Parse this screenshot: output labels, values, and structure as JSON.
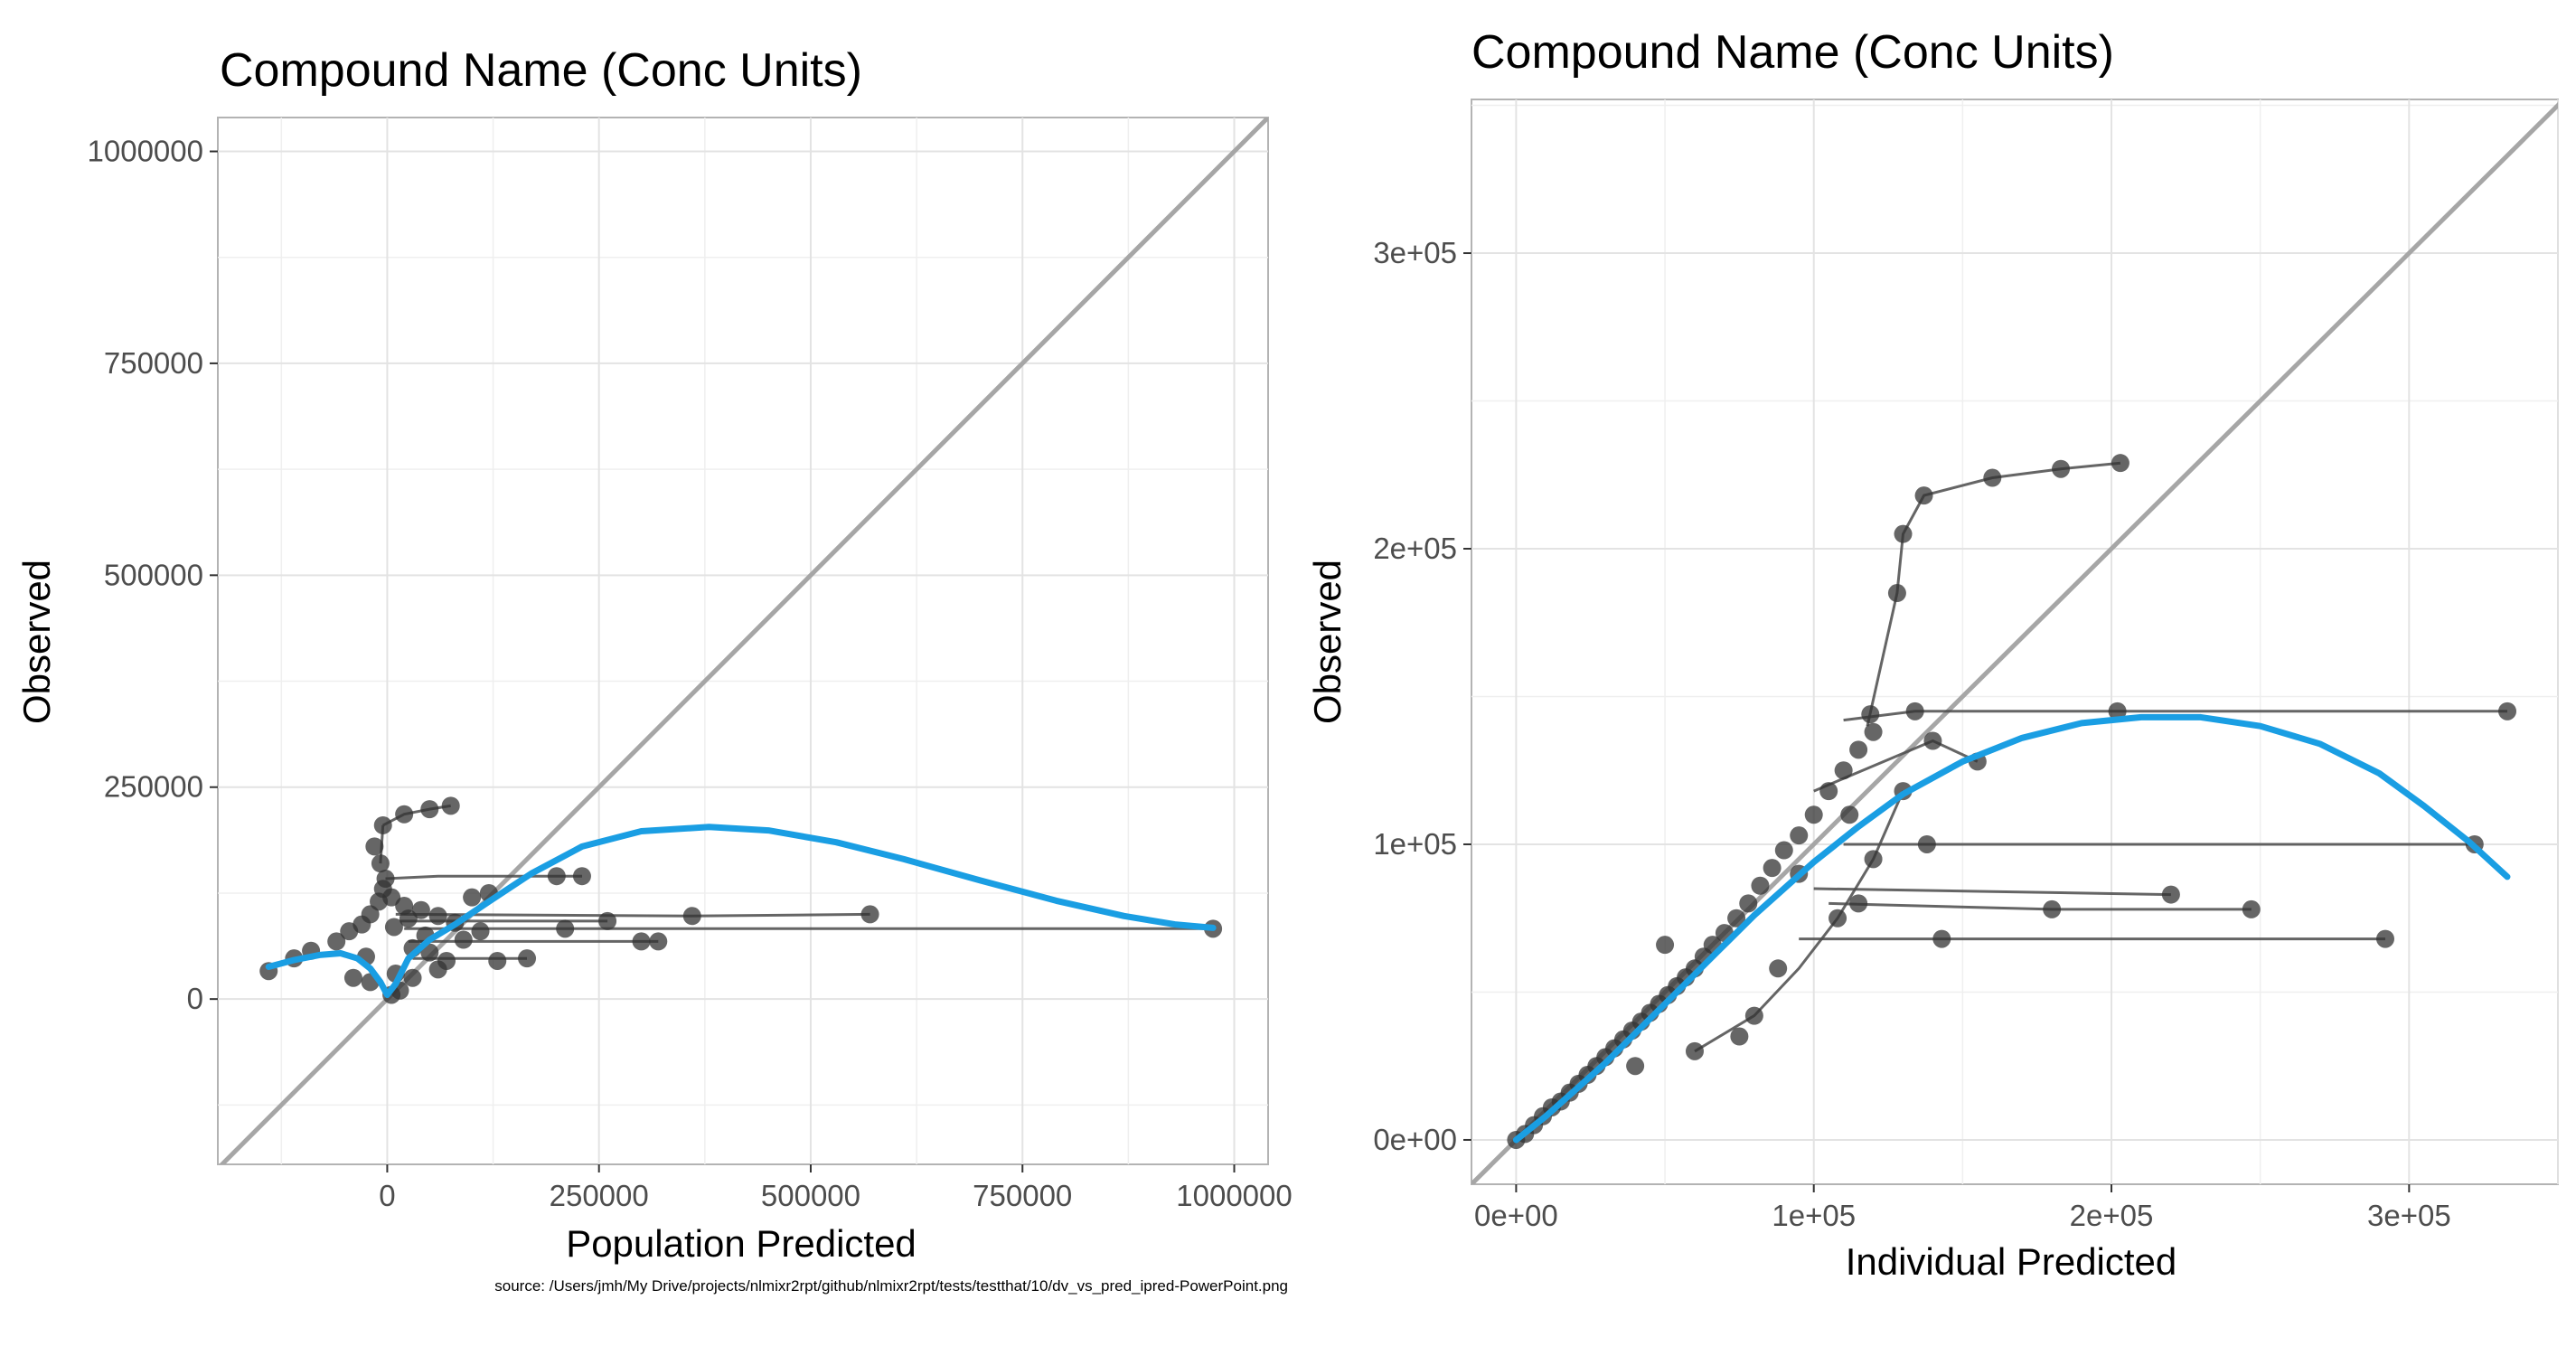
{
  "caption": "source: /Users/jmh/My Drive/projects/nlmixr2rpt/github/nlmixr2rpt/tests/testthat/10/dv_vs_pred_ipred-PowerPoint.png",
  "colors": {
    "identity_line": "#a6a6a6",
    "smooth_line": "#1a9ee3",
    "points": "#333333",
    "grid": "#e3e3e3",
    "panel_border": "#b3b3b3"
  },
  "chart_data": [
    {
      "type": "scatter",
      "title": "Compound Name (Conc Units)",
      "xlabel": "Population Predicted",
      "ylabel": "Observed",
      "xlim": [
        -200000,
        1040000
      ],
      "ylim": [
        -195000,
        1040000
      ],
      "x_ticks": [
        0,
        250000,
        500000,
        750000,
        1000000
      ],
      "x_tick_labels": [
        "0",
        "250000",
        "500000",
        "750000",
        "1000000"
      ],
      "y_ticks": [
        0,
        250000,
        500000,
        750000,
        1000000
      ],
      "y_tick_labels": [
        "0",
        "250000",
        "500000",
        "750000",
        "1000000"
      ],
      "grid": true,
      "identity_line": true,
      "points": [
        [
          -140000,
          33000
        ],
        [
          -110000,
          48000
        ],
        [
          -90000,
          57000
        ],
        [
          -60000,
          68000
        ],
        [
          -45000,
          80000
        ],
        [
          -30000,
          88000
        ],
        [
          -20000,
          100000
        ],
        [
          -10000,
          115000
        ],
        [
          -5000,
          130000
        ],
        [
          -2000,
          142000
        ],
        [
          -8000,
          160000
        ],
        [
          -15000,
          180000
        ],
        [
          -5000,
          205000
        ],
        [
          20000,
          218000
        ],
        [
          50000,
          224000
        ],
        [
          75000,
          228000
        ],
        [
          5000,
          120000
        ],
        [
          20000,
          110000
        ],
        [
          40000,
          105000
        ],
        [
          60000,
          98000
        ],
        [
          80000,
          90000
        ],
        [
          100000,
          120000
        ],
        [
          120000,
          125000
        ],
        [
          30000,
          60000
        ],
        [
          50000,
          55000
        ],
        [
          70000,
          45000
        ],
        [
          90000,
          70000
        ],
        [
          110000,
          80000
        ],
        [
          10000,
          30000
        ],
        [
          30000,
          25000
        ],
        [
          60000,
          35000
        ],
        [
          15000,
          10000
        ],
        [
          5000,
          5000
        ],
        [
          -20000,
          20000
        ],
        [
          -40000,
          25000
        ],
        [
          200000,
          145000
        ],
        [
          230000,
          145000
        ],
        [
          260000,
          92000
        ],
        [
          360000,
          98000
        ],
        [
          570000,
          100000
        ],
        [
          300000,
          68000
        ],
        [
          320000,
          68000
        ],
        [
          130000,
          45000
        ],
        [
          165000,
          48000
        ],
        [
          210000,
          83000
        ],
        [
          975000,
          83000
        ],
        [
          8000,
          85000
        ],
        [
          25000,
          95000
        ],
        [
          45000,
          75000
        ],
        [
          -25000,
          50000
        ]
      ],
      "segments": [
        [
          [
            -5000,
            205000
          ],
          [
            20000,
            218000
          ],
          [
            50000,
            224000
          ],
          [
            75000,
            228000
          ]
        ],
        [
          [
            -2000,
            142000
          ],
          [
            60000,
            145000
          ],
          [
            200000,
            145000
          ],
          [
            230000,
            145000
          ]
        ],
        [
          [
            10000,
            100000
          ],
          [
            360000,
            98000
          ],
          [
            570000,
            100000
          ]
        ],
        [
          [
            15000,
            92000
          ],
          [
            260000,
            92000
          ]
        ],
        [
          [
            20000,
            83000
          ],
          [
            975000,
            83000
          ]
        ],
        [
          [
            25000,
            68000
          ],
          [
            300000,
            68000
          ],
          [
            320000,
            68000
          ]
        ],
        [
          [
            30000,
            48000
          ],
          [
            165000,
            48000
          ]
        ],
        [
          [
            -8000,
            160000
          ],
          [
            -5000,
            205000
          ]
        ]
      ],
      "smooth": [
        [
          -140000,
          38000
        ],
        [
          -110000,
          46000
        ],
        [
          -80000,
          52000
        ],
        [
          -55000,
          54000
        ],
        [
          -35000,
          48000
        ],
        [
          -20000,
          36000
        ],
        [
          -8000,
          20000
        ],
        [
          0,
          5000
        ],
        [
          10000,
          18000
        ],
        [
          25000,
          48000
        ],
        [
          50000,
          70000
        ],
        [
          80000,
          88000
        ],
        [
          120000,
          115000
        ],
        [
          170000,
          148000
        ],
        [
          230000,
          180000
        ],
        [
          300000,
          198000
        ],
        [
          380000,
          203000
        ],
        [
          450000,
          199000
        ],
        [
          530000,
          185000
        ],
        [
          610000,
          165000
        ],
        [
          700000,
          140000
        ],
        [
          790000,
          116000
        ],
        [
          870000,
          98000
        ],
        [
          930000,
          88000
        ],
        [
          975000,
          84000
        ]
      ]
    },
    {
      "type": "scatter",
      "title": "Compound Name (Conc Units)",
      "xlabel": "Individual Predicted",
      "ylabel": "Observed",
      "xlim": [
        -15000,
        350000
      ],
      "ylim": [
        -15000,
        352000
      ],
      "x_ticks": [
        0,
        100000,
        200000,
        300000
      ],
      "x_tick_labels": [
        "0e+00",
        "1e+05",
        "2e+05",
        "3e+05"
      ],
      "y_ticks": [
        0,
        100000,
        200000,
        300000
      ],
      "y_tick_labels": [
        "0e+00",
        "1e+05",
        "2e+05",
        "3e+05"
      ],
      "grid": true,
      "identity_line": true,
      "points": [
        [
          0,
          0
        ],
        [
          3000,
          2000
        ],
        [
          6000,
          5000
        ],
        [
          9000,
          8000
        ],
        [
          12000,
          11000
        ],
        [
          15000,
          13000
        ],
        [
          18000,
          16000
        ],
        [
          21000,
          19000
        ],
        [
          24000,
          22000
        ],
        [
          27000,
          25000
        ],
        [
          30000,
          28000
        ],
        [
          33000,
          31000
        ],
        [
          36000,
          34000
        ],
        [
          39000,
          37000
        ],
        [
          42000,
          40000
        ],
        [
          45000,
          43000
        ],
        [
          48000,
          46000
        ],
        [
          51000,
          49000
        ],
        [
          54000,
          52000
        ],
        [
          57000,
          55000
        ],
        [
          60000,
          58000
        ],
        [
          63000,
          62000
        ],
        [
          66000,
          66000
        ],
        [
          70000,
          70000
        ],
        [
          74000,
          75000
        ],
        [
          78000,
          80000
        ],
        [
          82000,
          86000
        ],
        [
          86000,
          92000
        ],
        [
          90000,
          98000
        ],
        [
          95000,
          103000
        ],
        [
          100000,
          110000
        ],
        [
          105000,
          118000
        ],
        [
          110000,
          125000
        ],
        [
          115000,
          132000
        ],
        [
          120000,
          138000
        ],
        [
          128000,
          185000
        ],
        [
          130000,
          205000
        ],
        [
          137000,
          218000
        ],
        [
          160000,
          224000
        ],
        [
          183000,
          227000
        ],
        [
          203000,
          229000
        ],
        [
          119000,
          144000
        ],
        [
          134000,
          145000
        ],
        [
          202000,
          145000
        ],
        [
          333000,
          145000
        ],
        [
          322000,
          100000
        ],
        [
          138000,
          100000
        ],
        [
          220000,
          83000
        ],
        [
          247000,
          78000
        ],
        [
          180000,
          78000
        ],
        [
          292000,
          68000
        ],
        [
          143000,
          68000
        ],
        [
          155000,
          128000
        ],
        [
          140000,
          135000
        ],
        [
          130000,
          118000
        ],
        [
          108000,
          75000
        ],
        [
          88000,
          58000
        ],
        [
          80000,
          42000
        ],
        [
          75000,
          35000
        ],
        [
          60000,
          30000
        ],
        [
          40000,
          25000
        ],
        [
          50000,
          66000
        ],
        [
          95000,
          90000
        ],
        [
          112000,
          110000
        ],
        [
          115000,
          80000
        ],
        [
          120000,
          95000
        ]
      ],
      "segments": [
        [
          [
            118000,
            140000
          ],
          [
            128000,
            185000
          ],
          [
            130000,
            205000
          ],
          [
            137000,
            218000
          ],
          [
            160000,
            224000
          ],
          [
            183000,
            227000
          ],
          [
            203000,
            229000
          ]
        ],
        [
          [
            110000,
            142000
          ],
          [
            134000,
            145000
          ],
          [
            202000,
            145000
          ],
          [
            333000,
            145000
          ]
        ],
        [
          [
            110000,
            100000
          ],
          [
            138000,
            100000
          ],
          [
            322000,
            100000
          ]
        ],
        [
          [
            100000,
            85000
          ],
          [
            220000,
            83000
          ]
        ],
        [
          [
            105000,
            80000
          ],
          [
            180000,
            78000
          ],
          [
            247000,
            78000
          ]
        ],
        [
          [
            95000,
            68000
          ],
          [
            143000,
            68000
          ],
          [
            292000,
            68000
          ]
        ],
        [
          [
            100000,
            118000
          ],
          [
            140000,
            135000
          ],
          [
            155000,
            128000
          ]
        ],
        [
          [
            60000,
            30000
          ],
          [
            80000,
            42000
          ],
          [
            95000,
            58000
          ],
          [
            108000,
            75000
          ],
          [
            120000,
            95000
          ],
          [
            130000,
            118000
          ]
        ]
      ],
      "smooth": [
        [
          0,
          0
        ],
        [
          10000,
          8000
        ],
        [
          20000,
          17000
        ],
        [
          30000,
          26000
        ],
        [
          40000,
          36000
        ],
        [
          50000,
          46000
        ],
        [
          60000,
          56000
        ],
        [
          70000,
          66000
        ],
        [
          80000,
          76000
        ],
        [
          90000,
          85000
        ],
        [
          100000,
          94000
        ],
        [
          115000,
          106000
        ],
        [
          130000,
          117000
        ],
        [
          150000,
          128000
        ],
        [
          170000,
          136000
        ],
        [
          190000,
          141000
        ],
        [
          210000,
          143000
        ],
        [
          230000,
          143000
        ],
        [
          250000,
          140000
        ],
        [
          270000,
          134000
        ],
        [
          290000,
          124000
        ],
        [
          305000,
          113000
        ],
        [
          320000,
          101000
        ],
        [
          333000,
          89000
        ]
      ]
    }
  ]
}
